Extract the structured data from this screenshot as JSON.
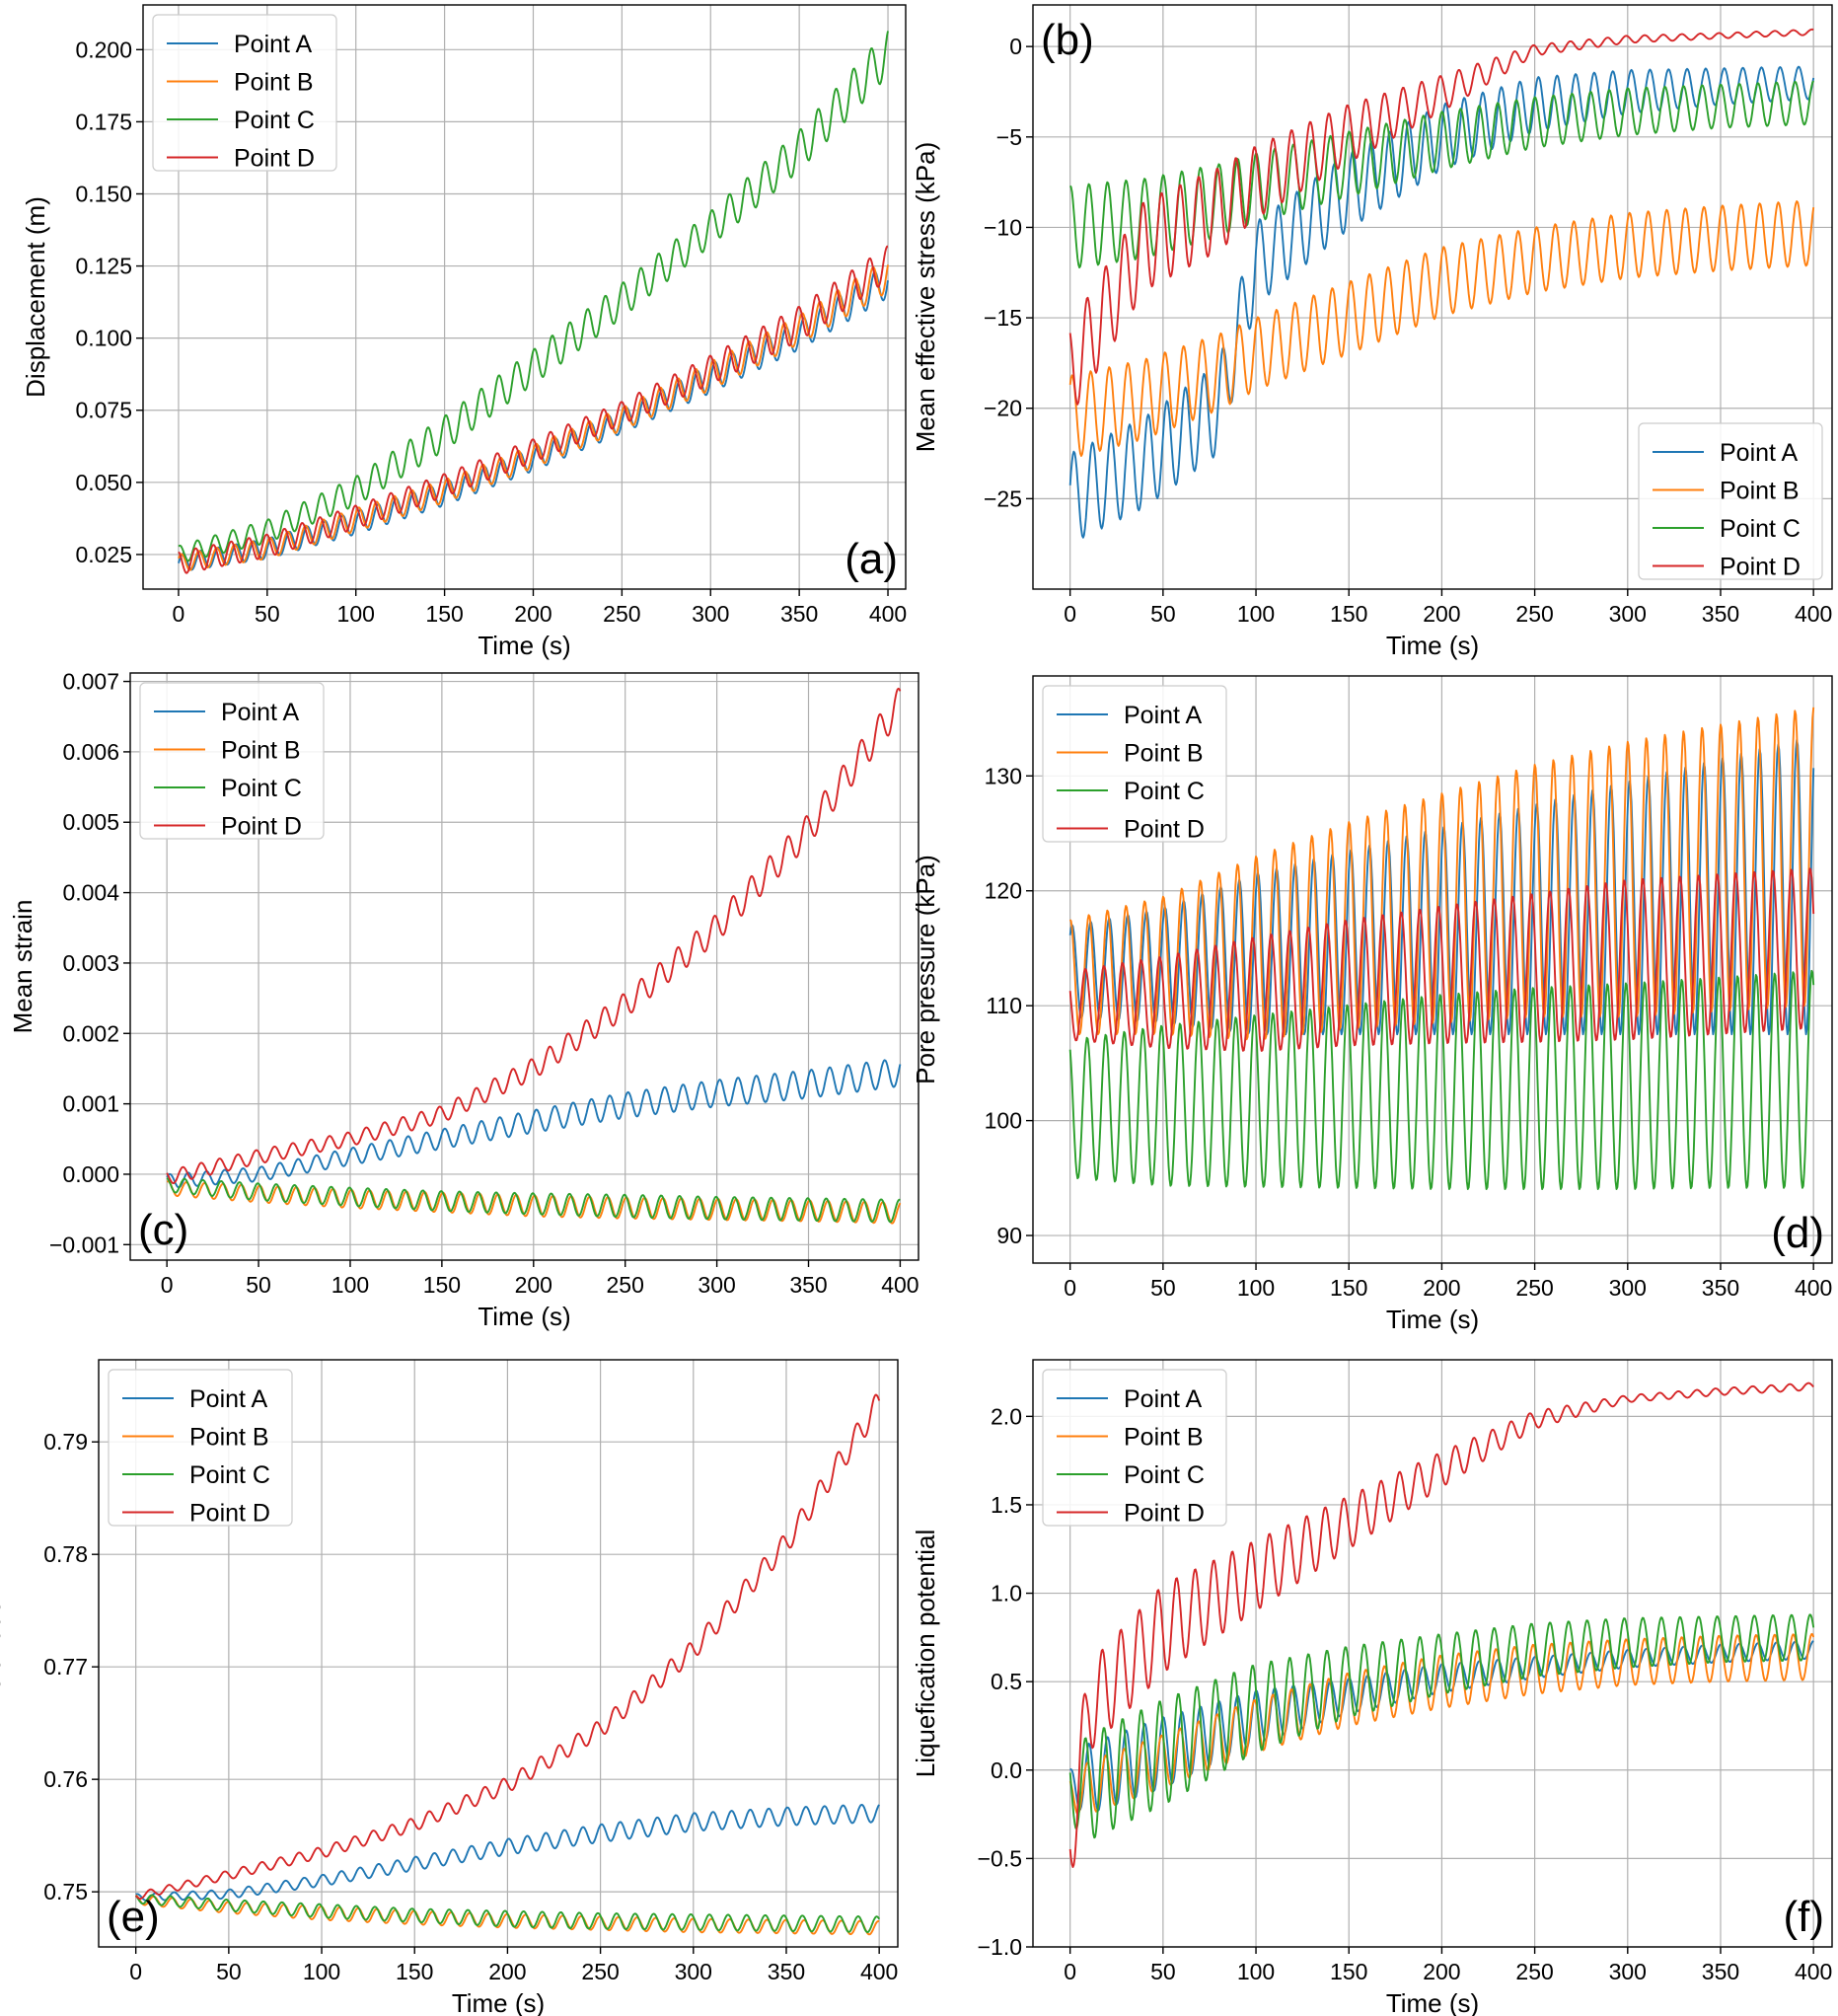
{
  "colors": {
    "Point A": "#1f77b4",
    "Point B": "#ff7f0e",
    "Point C": "#2ca02c",
    "Point D": "#d62728"
  },
  "chart_data": [
    {
      "id": "a",
      "panel_tag": "(a)",
      "type": "line",
      "xlabel": "Time (s)",
      "ylabel": "Displacement (m)",
      "xlim": [
        -20,
        410
      ],
      "ylim": [
        0.013,
        0.2155
      ],
      "xticks": [
        0,
        50,
        100,
        150,
        200,
        250,
        300,
        350,
        400
      ],
      "xtick_labels": [
        "0",
        "50",
        "100",
        "150",
        "200",
        "250",
        "300",
        "350",
        "400"
      ],
      "yticks": [
        0.025,
        0.05,
        0.075,
        0.1,
        0.125,
        0.15,
        0.175,
        0.2
      ],
      "ytick_labels": [
        "0.025",
        "0.050",
        "0.075",
        "0.100",
        "0.125",
        "0.150",
        "0.175",
        "0.200"
      ],
      "legend": {
        "location": "top-left",
        "entries": [
          "Point A",
          "Point B",
          "Point C",
          "Point D"
        ]
      },
      "tag_location": "bottom-right",
      "x": [
        0,
        50,
        100,
        150,
        200,
        250,
        300,
        350,
        400
      ],
      "series": [
        {
          "name": "Point A",
          "values": [
            0.022,
            0.027,
            0.036,
            0.046,
            0.058,
            0.071,
            0.086,
            0.101,
            0.12
          ],
          "amplitude": [
            0.003,
            0.0035,
            0.004,
            0.004,
            0.004,
            0.004,
            0.005,
            0.005,
            0.006
          ]
        },
        {
          "name": "Point B",
          "values": [
            0.022,
            0.027,
            0.037,
            0.047,
            0.059,
            0.072,
            0.087,
            0.103,
            0.122
          ],
          "amplitude": [
            0.003,
            0.0035,
            0.004,
            0.004,
            0.004,
            0.004,
            0.005,
            0.005,
            0.006
          ]
        },
        {
          "name": "Point C",
          "values": [
            0.025,
            0.033,
            0.047,
            0.067,
            0.09,
            0.113,
            0.138,
            0.165,
            0.199
          ],
          "amplitude": [
            0.003,
            0.004,
            0.005,
            0.006,
            0.006,
            0.006,
            0.006,
            0.007,
            0.008
          ]
        },
        {
          "name": "Point D",
          "values": [
            0.022,
            0.028,
            0.038,
            0.049,
            0.061,
            0.074,
            0.089,
            0.105,
            0.126
          ],
          "amplitude": [
            0.004,
            0.004,
            0.004,
            0.004,
            0.004,
            0.004,
            0.005,
            0.006,
            0.006
          ]
        }
      ]
    },
    {
      "id": "b",
      "panel_tag": "(b)",
      "type": "line",
      "xlabel": "Time (s)",
      "ylabel": "Mean effective stress (kPa)",
      "xlim": [
        -20,
        410
      ],
      "ylim": [
        -30,
        2.3
      ],
      "xticks": [
        0,
        50,
        100,
        150,
        200,
        250,
        300,
        350,
        400
      ],
      "xtick_labels": [
        "0",
        "50",
        "100",
        "150",
        "200",
        "250",
        "300",
        "350",
        "400"
      ],
      "yticks": [
        -25,
        -20,
        -15,
        -10,
        -5,
        0
      ],
      "ytick_labels": [
        "−25",
        "−20",
        "−15",
        "−10",
        "−5",
        "0"
      ],
      "legend": {
        "location": "bottom-right",
        "entries": [
          "Point A",
          "Point B",
          "Point C",
          "Point D"
        ]
      },
      "tag_location": "top-left",
      "x": [
        0,
        40,
        80,
        100,
        150,
        200,
        250,
        300,
        350,
        400
      ],
      "series": [
        {
          "name": "Point A",
          "values": [
            -25,
            -23,
            -20,
            -12,
            -8,
            -5,
            -3.2,
            -2.5,
            -2.2,
            -2
          ],
          "amplitude": [
            2.5,
            2.5,
            2.5,
            2.3,
            2.1,
            1.8,
            1.5,
            1.2,
            1,
            0.9
          ]
        },
        {
          "name": "Point B",
          "values": [
            -20.5,
            -19.5,
            -18,
            -17,
            -15,
            -13,
            -11.8,
            -11,
            -10.6,
            -10.3
          ],
          "amplitude": [
            2.3,
            2.2,
            2.1,
            2,
            2,
            1.9,
            1.8,
            1.8,
            1.8,
            1.8
          ]
        },
        {
          "name": "Point C",
          "values": [
            -10,
            -9.5,
            -8.5,
            -7.8,
            -6.5,
            -5.2,
            -4.2,
            -3.6,
            -3.3,
            -3.1
          ],
          "amplitude": [
            2.3,
            2.2,
            2,
            1.9,
            1.8,
            1.6,
            1.4,
            1.3,
            1.2,
            1.2
          ]
        },
        {
          "name": "Point D",
          "values": [
            -18,
            -11,
            -9,
            -7.5,
            -4.8,
            -2.6,
            -0.2,
            0.4,
            0.6,
            0.8
          ],
          "amplitude": [
            2.5,
            2.5,
            2.3,
            2,
            1.6,
            1,
            0.3,
            0.2,
            0.15,
            0.15
          ]
        }
      ]
    },
    {
      "id": "c",
      "panel_tag": "(c)",
      "type": "line",
      "xlabel": "Time (s)",
      "ylabel": "Mean strain",
      "xlim": [
        -20,
        410
      ],
      "ylim": [
        -0.00122,
        0.00712
      ],
      "xticks": [
        0,
        50,
        100,
        150,
        200,
        250,
        300,
        350,
        400
      ],
      "xtick_labels": [
        "0",
        "50",
        "100",
        "150",
        "200",
        "250",
        "300",
        "350",
        "400"
      ],
      "yticks": [
        -0.001,
        0,
        0.001,
        0.002,
        0.003,
        0.004,
        0.005,
        0.006,
        0.007
      ],
      "ytick_labels": [
        "−0.001",
        "0.000",
        "0.001",
        "0.002",
        "0.003",
        "0.004",
        "0.005",
        "0.006",
        "0.007"
      ],
      "legend": {
        "location": "top-left",
        "entries": [
          "Point A",
          "Point B",
          "Point C",
          "Point D"
        ]
      },
      "tag_location": "bottom-left",
      "x": [
        0,
        50,
        100,
        150,
        200,
        250,
        300,
        350,
        400
      ],
      "series": [
        {
          "name": "Point A",
          "values": [
            -0.0001,
            0,
            0.00025,
            0.0005,
            0.00075,
            0.00098,
            0.00115,
            0.00128,
            0.00145
          ],
          "amplitude": [
            0.0001,
            0.0001,
            0.00012,
            0.00014,
            0.00016,
            0.00018,
            0.00019,
            0.0002,
            0.0002
          ]
        },
        {
          "name": "Point B",
          "values": [
            -0.0002,
            -0.00028,
            -0.00035,
            -0.0004,
            -0.00045,
            -0.00048,
            -0.0005,
            -0.00052,
            -0.00055
          ],
          "amplitude": [
            0.0001,
            0.00012,
            0.00013,
            0.00014,
            0.00015,
            0.00015,
            0.00015,
            0.00015,
            0.00015
          ]
        },
        {
          "name": "Point C",
          "values": [
            -0.00015,
            -0.00025,
            -0.00032,
            -0.00038,
            -0.00042,
            -0.00045,
            -0.00048,
            -0.0005,
            -0.00052
          ],
          "amplitude": [
            0.0001,
            0.00012,
            0.00013,
            0.00014,
            0.00015,
            0.00016,
            0.00016,
            0.00016,
            0.00016
          ]
        },
        {
          "name": "Point D",
          "values": [
            -5e-05,
            0.00025,
            0.0005,
            0.00085,
            0.0015,
            0.0024,
            0.0035,
            0.0049,
            0.0067
          ],
          "amplitude": [
            0.0001,
            0.0001,
            0.0001,
            0.00012,
            0.00015,
            0.00018,
            0.0002,
            0.00022,
            0.00024
          ]
        }
      ]
    },
    {
      "id": "d",
      "panel_tag": "(d)",
      "type": "line",
      "xlabel": "Time (s)",
      "ylabel": "Pore pressure (kPa)",
      "xlim": [
        -20,
        410
      ],
      "ylim": [
        87.6,
        138.7
      ],
      "xticks": [
        0,
        50,
        100,
        150,
        200,
        250,
        300,
        350,
        400
      ],
      "xtick_labels": [
        "0",
        "50",
        "100",
        "150",
        "200",
        "250",
        "300",
        "350",
        "400"
      ],
      "yticks": [
        90,
        100,
        110,
        120,
        130
      ],
      "ytick_labels": [
        "90",
        "100",
        "110",
        "120",
        "130"
      ],
      "legend": {
        "location": "top-left",
        "entries": [
          "Point A",
          "Point B",
          "Point C",
          "Point D"
        ]
      },
      "tag_location": "bottom-right",
      "x": [
        0,
        50,
        100,
        150,
        200,
        250,
        300,
        350,
        400
      ],
      "series": [
        {
          "name": "Point A",
          "values": [
            113,
            113.5,
            114.5,
            115.5,
            116.5,
            117.5,
            118.5,
            119.5,
            120.5
          ],
          "amplitude": [
            4,
            5,
            7,
            8,
            9,
            10,
            11,
            12,
            13
          ]
        },
        {
          "name": "Point B",
          "values": [
            112.5,
            113.5,
            115,
            117,
            118.5,
            120,
            121,
            122,
            123
          ],
          "amplitude": [
            5,
            6,
            8,
            9,
            10,
            11,
            12,
            12.5,
            13
          ]
        },
        {
          "name": "Point C",
          "values": [
            101,
            101.3,
            101.7,
            102.1,
            102.5,
            102.8,
            103,
            103.3,
            103.6
          ],
          "amplitude": [
            6,
            7,
            7.5,
            8,
            8.5,
            8.8,
            9,
            9.2,
            9.5
          ]
        },
        {
          "name": "Point D",
          "values": [
            110,
            110.3,
            111,
            112,
            112.7,
            113.3,
            114,
            114.5,
            115
          ],
          "amplitude": [
            3,
            4,
            5,
            5.5,
            6,
            6.5,
            7,
            7,
            7
          ]
        }
      ]
    },
    {
      "id": "e",
      "panel_tag": "(e)",
      "type": "line",
      "xlabel": "Time (s)",
      "ylabel": "Void ratio",
      "xlim": [
        -20,
        410
      ],
      "ylim": [
        0.7451,
        0.7973
      ],
      "xticks": [
        0,
        50,
        100,
        150,
        200,
        250,
        300,
        350,
        400
      ],
      "xtick_labels": [
        "0",
        "50",
        "100",
        "150",
        "200",
        "250",
        "300",
        "350",
        "400"
      ],
      "yticks": [
        0.75,
        0.76,
        0.77,
        0.78,
        0.79
      ],
      "ytick_labels": [
        "0.75",
        "0.76",
        "0.77",
        "0.78",
        "0.79"
      ],
      "legend": {
        "location": "top-left",
        "entries": [
          "Point A",
          "Point B",
          "Point C",
          "Point D"
        ]
      },
      "tag_location": "bottom-left",
      "x": [
        0,
        50,
        100,
        150,
        200,
        250,
        300,
        350,
        400
      ],
      "series": [
        {
          "name": "Point A",
          "values": [
            0.7495,
            0.7498,
            0.751,
            0.7525,
            0.754,
            0.7552,
            0.7562,
            0.7567,
            0.757
          ],
          "amplitude": [
            0.0003,
            0.0004,
            0.0005,
            0.0006,
            0.0007,
            0.0008,
            0.0008,
            0.0008,
            0.0008
          ]
        },
        {
          "name": "Point B",
          "values": [
            0.7493,
            0.7486,
            0.7481,
            0.7477,
            0.7474,
            0.7472,
            0.747,
            0.7469,
            0.7468
          ],
          "amplitude": [
            0.0004,
            0.0005,
            0.0006,
            0.0006,
            0.0006,
            0.0006,
            0.0006,
            0.0006,
            0.0006
          ]
        },
        {
          "name": "Point C",
          "values": [
            0.7494,
            0.7488,
            0.7483,
            0.7479,
            0.7476,
            0.7474,
            0.7473,
            0.7472,
            0.7471
          ],
          "amplitude": [
            0.0004,
            0.0005,
            0.0006,
            0.0006,
            0.0007,
            0.0007,
            0.0007,
            0.0007,
            0.0007
          ]
        },
        {
          "name": "Point D",
          "values": [
            0.7496,
            0.7515,
            0.7535,
            0.756,
            0.7595,
            0.7645,
            0.7715,
            0.781,
            0.7935
          ],
          "amplitude": [
            0.0003,
            0.0004,
            0.0005,
            0.0006,
            0.0007,
            0.0008,
            0.0009,
            0.001,
            0.0012
          ]
        }
      ]
    },
    {
      "id": "f",
      "panel_tag": "(f)",
      "type": "line",
      "xlabel": "Time (s)",
      "ylabel": "Liquefication potential",
      "xlim": [
        -20,
        410
      ],
      "ylim": [
        -1.0,
        2.32
      ],
      "xticks": [
        0,
        50,
        100,
        150,
        200,
        250,
        300,
        350,
        400
      ],
      "xtick_labels": [
        "0",
        "50",
        "100",
        "150",
        "200",
        "250",
        "300",
        "350",
        "400"
      ],
      "yticks": [
        -1.0,
        -0.5,
        0.0,
        0.5,
        1.0,
        1.5,
        2.0
      ],
      "ytick_labels": [
        "−1.0",
        "−0.5",
        "0.0",
        "0.5",
        "1.0",
        "1.5",
        "2.0"
      ],
      "legend": {
        "location": "top-left",
        "entries": [
          "Point A",
          "Point B",
          "Point C",
          "Point D"
        ]
      },
      "tag_location": "bottom-right",
      "x": [
        0,
        10,
        50,
        100,
        150,
        200,
        250,
        300,
        350,
        400
      ],
      "series": [
        {
          "name": "Point A",
          "values": [
            -0.1,
            -0.05,
            0.1,
            0.3,
            0.42,
            0.52,
            0.58,
            0.63,
            0.66,
            0.68
          ],
          "amplitude": [
            0.1,
            0.2,
            0.2,
            0.15,
            0.1,
            0.08,
            0.06,
            0.05,
            0.05,
            0.05
          ]
        },
        {
          "name": "Point B",
          "values": [
            -0.15,
            -0.1,
            0.05,
            0.25,
            0.4,
            0.5,
            0.57,
            0.61,
            0.63,
            0.64
          ],
          "amplitude": [
            0.1,
            0.15,
            0.15,
            0.15,
            0.15,
            0.15,
            0.14,
            0.13,
            0.13,
            0.13
          ]
        },
        {
          "name": "Point C",
          "values": [
            -0.1,
            -0.1,
            0.1,
            0.35,
            0.5,
            0.6,
            0.68,
            0.72,
            0.74,
            0.75
          ],
          "amplitude": [
            0.2,
            0.3,
            0.3,
            0.25,
            0.2,
            0.17,
            0.15,
            0.14,
            0.13,
            0.13
          ]
        },
        {
          "name": "Point D",
          "values": [
            -0.4,
            0.35,
            0.8,
            1.1,
            1.4,
            1.7,
            1.98,
            2.1,
            2.14,
            2.17
          ],
          "amplitude": [
            0.3,
            0.25,
            0.25,
            0.2,
            0.15,
            0.1,
            0.05,
            0.02,
            0.02,
            0.02
          ]
        }
      ]
    }
  ]
}
